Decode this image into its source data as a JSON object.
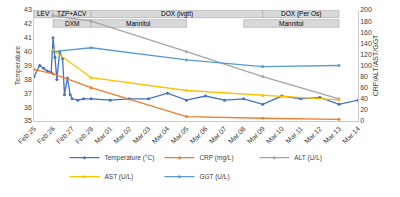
{
  "chart_data": {
    "type": "line",
    "y_label": "Temperature",
    "y2_label": "CRP/ALT/AST/GGT",
    "xlim": [
      0,
      17
    ],
    "xticks": [
      {
        "value": 0,
        "label": "Feb.25"
      },
      {
        "value": 1,
        "label": "Feb.26"
      },
      {
        "value": 2,
        "label": "Feb.27"
      },
      {
        "value": 3,
        "label": "Feb.28"
      },
      {
        "value": 4,
        "label": "Mar.01"
      },
      {
        "value": 5,
        "label": "Mar.02"
      },
      {
        "value": 6,
        "label": "Mar.03"
      },
      {
        "value": 7,
        "label": "Mar.04"
      },
      {
        "value": 8,
        "label": "Mar.05"
      },
      {
        "value": 9,
        "label": "Mar.06"
      },
      {
        "value": 10,
        "label": "Mar.07"
      },
      {
        "value": 11,
        "label": "Mar.08"
      },
      {
        "value": 12,
        "label": "Mar.09"
      },
      {
        "value": 13,
        "label": "Mar.10"
      },
      {
        "value": 14,
        "label": "Mar.11"
      },
      {
        "value": 15,
        "label": "Mar.12"
      },
      {
        "value": 16,
        "label": "Mar.13"
      },
      {
        "value": 17,
        "label": "Mar.14"
      }
    ],
    "ylim": [
      35,
      43
    ],
    "yticks": [
      35,
      36,
      37,
      38,
      39,
      40,
      41,
      42,
      43
    ],
    "y2lim": [
      0,
      200
    ],
    "y2ticks": [
      0,
      20,
      40,
      60,
      80,
      100,
      120,
      140,
      160,
      180,
      200
    ],
    "grid": false,
    "legend": "bottom",
    "series": [
      {
        "name": "Temperature (°C)",
        "color": "#4472c4",
        "marker": "circle",
        "line_style": "solid",
        "x": [
          0,
          0.3,
          0.5,
          0.7,
          0.9,
          1.0,
          1.1,
          1.2,
          1.35,
          1.5,
          1.6,
          1.75,
          1.9,
          2.0,
          2.3,
          2.6,
          3,
          4,
          5,
          6,
          7,
          8,
          9,
          10,
          11,
          12,
          13,
          14,
          15,
          16,
          17
        ],
        "values": [
          38.2,
          39.0,
          38.8,
          38.6,
          38.5,
          41.0,
          39.6,
          38.0,
          40.0,
          39.5,
          36.9,
          38.1,
          36.9,
          36.6,
          36.5,
          36.6,
          36.6,
          36.5,
          36.6,
          36.6,
          37.0,
          36.5,
          36.8,
          36.5,
          36.6,
          36.2,
          36.8,
          36.6,
          36.7,
          36.2,
          36.5
        ]
      },
      {
        "name": "CRP (mg/L)",
        "color": "#ed7d31",
        "marker": "circle",
        "line_style": "solid",
        "axis": "y2",
        "x": [
          0,
          1,
          3,
          8,
          12,
          16
        ],
        "values": [
          93,
          85,
          60,
          8,
          5,
          3
        ]
      },
      {
        "name": "ALT (U/L)",
        "color": "#a5a5a5",
        "marker": "circle",
        "line_style": "solid",
        "axis": "y2",
        "x": [
          1,
          3,
          8,
          12,
          16
        ],
        "values": [
          190,
          180,
          125,
          80,
          40
        ]
      },
      {
        "name": "AST (U/L)",
        "color": "#ffc000",
        "marker": "circle",
        "line_style": "solid",
        "axis": "y2",
        "x": [
          1,
          3,
          8,
          12,
          16
        ],
        "values": [
          128,
          78,
          55,
          46,
          38
        ]
      },
      {
        "name": "GGT (U/L)",
        "color": "#5b9bd5",
        "marker": "circle",
        "line_style": "solid",
        "axis": "y2",
        "x": [
          1,
          3,
          8,
          12,
          16
        ],
        "values": [
          125,
          132,
          110,
          98,
          100
        ]
      }
    ],
    "treatment_rows": [
      [
        {
          "text": "LEV",
          "start": 0,
          "end": 1
        },
        {
          "text": "TZP+ACV",
          "start": 1,
          "end": 3
        },
        {
          "text": "DOX (ivgtt)",
          "start": 3,
          "end": 12
        },
        {
          "text": "DOX (Per Os)",
          "start": 12,
          "end": 16
        }
      ],
      [
        {
          "text": "DXM",
          "start": 1,
          "end": 3
        },
        {
          "text": "Mannitol",
          "start": 3,
          "end": 8
        },
        {
          "text": "Mannitol",
          "start": 11,
          "end": 16
        }
      ]
    ]
  }
}
